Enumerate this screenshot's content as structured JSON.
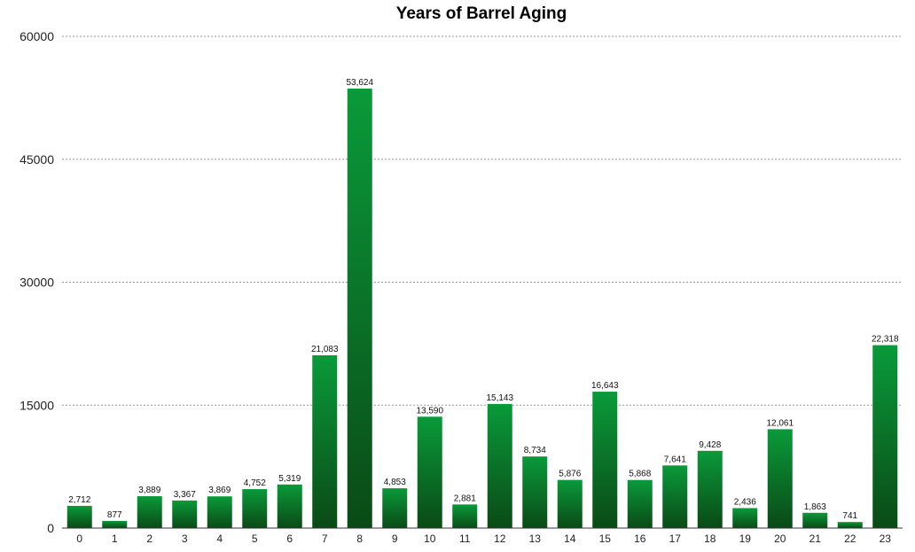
{
  "chart_data": {
    "type": "bar",
    "title": "Years of Barrel Aging",
    "xlabel": "",
    "ylabel": "",
    "categories": [
      "0",
      "1",
      "2",
      "3",
      "4",
      "5",
      "6",
      "7",
      "8",
      "9",
      "10",
      "11",
      "12",
      "13",
      "14",
      "15",
      "16",
      "17",
      "18",
      "19",
      "20",
      "21",
      "22",
      "23"
    ],
    "values": [
      2712,
      877,
      3889,
      3367,
      3869,
      4752,
      5319,
      21083,
      53624,
      4853,
      13590,
      2881,
      15143,
      8734,
      5876,
      16643,
      5868,
      7641,
      9428,
      2436,
      12061,
      1863,
      741,
      22318
    ],
    "data_labels": [
      "2,712",
      "877",
      "3,889",
      "3,367",
      "3,869",
      "4,752",
      "5,319",
      "21,083",
      "53,624",
      "4,853",
      "13,590",
      "2,881",
      "15,143",
      "8,734",
      "5,876",
      "16,643",
      "5,868",
      "7,641",
      "9,428",
      "2,436",
      "12,061",
      "1,863",
      "741",
      "22,318"
    ],
    "ylim": [
      0,
      60000
    ],
    "yticks": [
      0,
      15000,
      30000,
      45000,
      60000
    ],
    "ytick_labels": [
      "0",
      "15000",
      "30000",
      "45000",
      "60000"
    ],
    "grid": true,
    "legend": "none",
    "colors": {
      "bar_top": "#0a9a3a",
      "bar_bottom": "#0a4a16",
      "grid": "#9a9a9a",
      "text": "#222222"
    }
  }
}
